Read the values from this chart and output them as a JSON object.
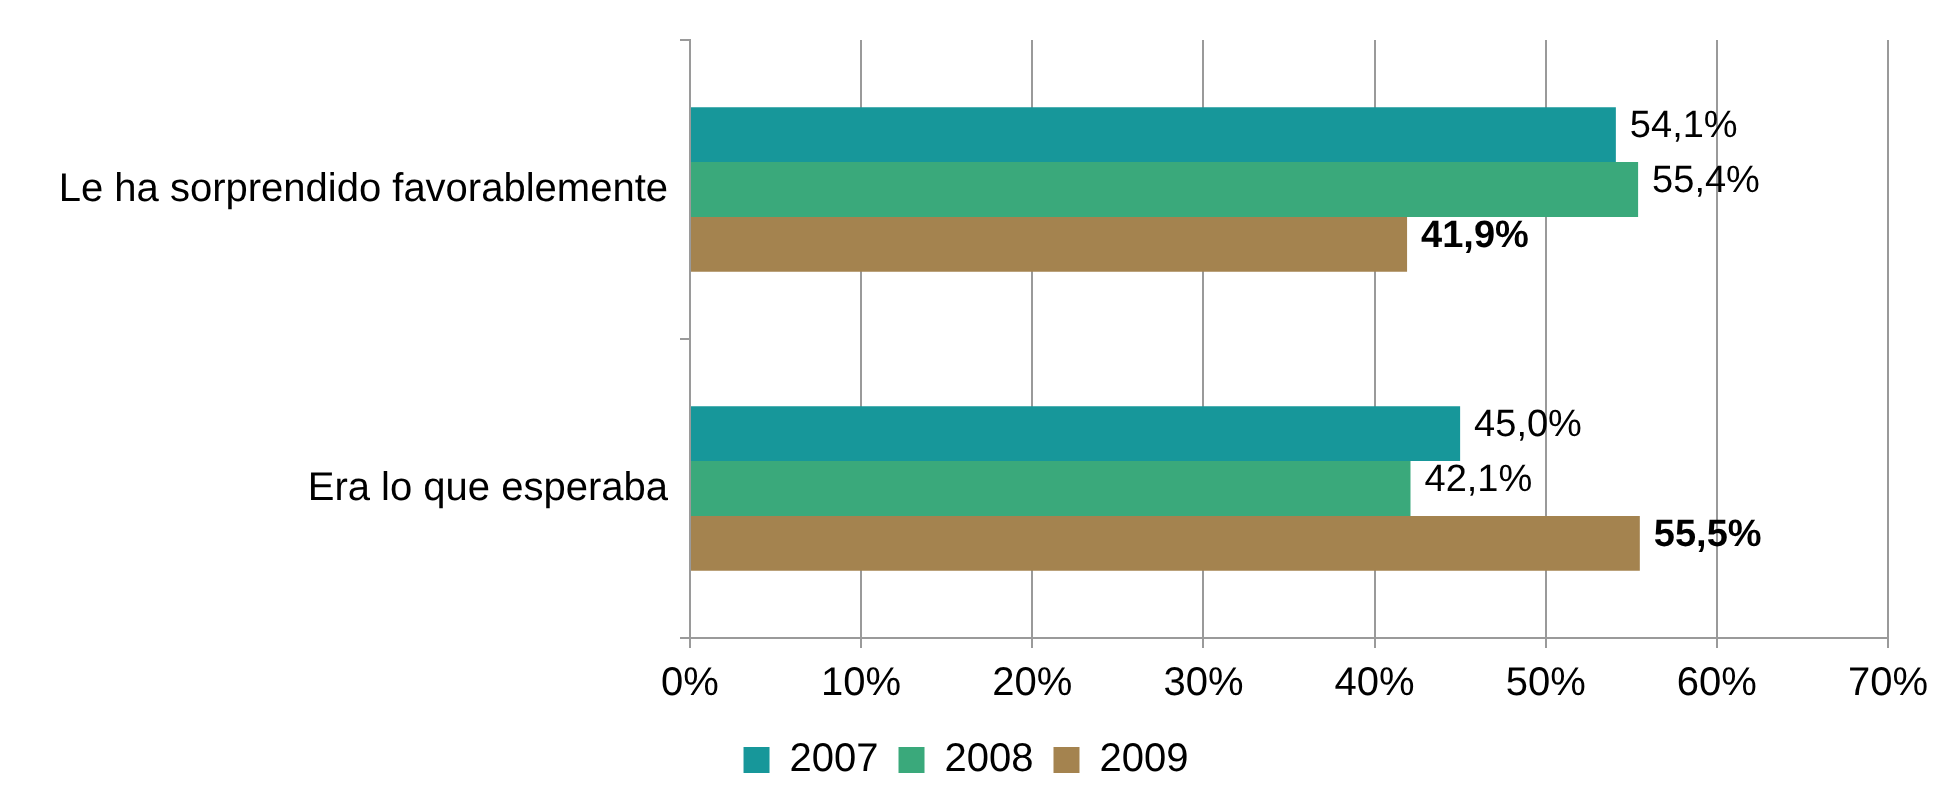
{
  "chart_data": {
    "type": "bar",
    "orientation": "horizontal",
    "categories": [
      "Le ha sorprendido favorablemente",
      "Era lo que esperaba"
    ],
    "series": [
      {
        "name": "2007",
        "color": "#17979a",
        "values": [
          54.1,
          45.0
        ],
        "value_labels": [
          "54,1%",
          "45,0%"
        ]
      },
      {
        "name": "2008",
        "color": "#3aa97b",
        "values": [
          55.4,
          42.1
        ],
        "value_labels": [
          "55,4%",
          "42,1%"
        ]
      },
      {
        "name": "2009",
        "color": "#a4834f",
        "values": [
          41.9,
          55.5
        ],
        "value_labels": [
          "41,9%",
          "55,5%"
        ]
      }
    ],
    "xlim": [
      0,
      70
    ],
    "xticks": [
      {
        "value": 0,
        "label": "0%"
      },
      {
        "value": 10,
        "label": "10%"
      },
      {
        "value": 20,
        "label": "20%"
      },
      {
        "value": 30,
        "label": "30%"
      },
      {
        "value": 40,
        "label": "40%"
      },
      {
        "value": 50,
        "label": "50%"
      },
      {
        "value": 60,
        "label": "60%"
      },
      {
        "value": 70,
        "label": "70%"
      }
    ],
    "grid": "x",
    "legend": "bottom"
  }
}
